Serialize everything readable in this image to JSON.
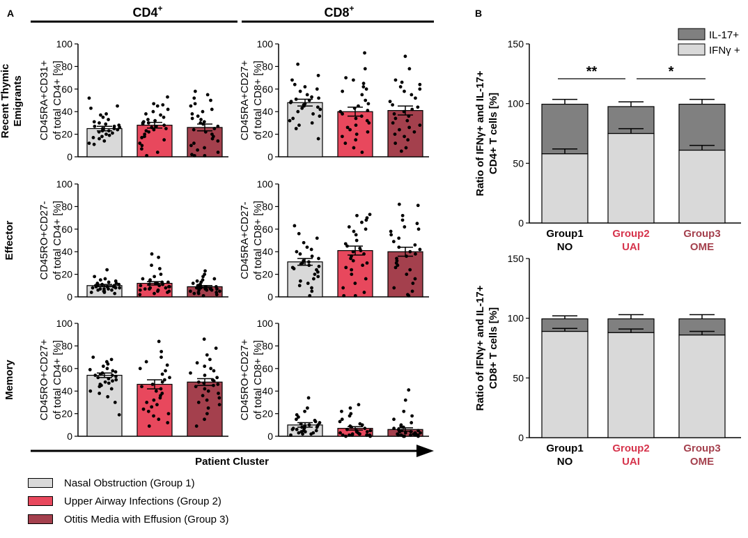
{
  "panel_labels": {
    "a": "A",
    "b": "B"
  },
  "headers": {
    "cd4": "CD4",
    "cd8": "CD8",
    "sup": "+"
  },
  "row_labels": [
    {
      "lines": [
        "Recent Thymic",
        "Emigrants"
      ]
    },
    {
      "lines": [
        "Effector"
      ]
    },
    {
      "lines": [
        "Memory"
      ]
    }
  ],
  "x_axis_label": "Patient Cluster",
  "legend": [
    {
      "label": "Nasal Obstruction (Group 1)",
      "color": "#d9d9d9"
    },
    {
      "label": "Upper Airway Infections (Group 2)",
      "color": "#e8485d"
    },
    {
      "label": "Otitis Media with Effusion (Group 3)",
      "color": "#a4404d"
    }
  ],
  "colors": {
    "g1": "#d9d9d9",
    "g2": "#e8485d",
    "g3": "#a4404d",
    "ifng": "#d9d9d9",
    "il17": "#808080",
    "g2_text": "#d6344c",
    "g3_text": "#a4404d"
  },
  "chart_data": [
    {
      "type": "bar",
      "id": "a-rte-cd4",
      "ylabel": [
        "CD45RA+CD31+",
        "of total CD4+ [%]"
      ],
      "ylim": [
        0,
        100
      ],
      "yticks": [
        0,
        20,
        40,
        60,
        80,
        100
      ],
      "categories": [
        "Group 1",
        "Group 2",
        "Group 3"
      ],
      "values": [
        25,
        28,
        26
      ],
      "errors": [
        2,
        2.5,
        3
      ],
      "points": [
        [
          52,
          45,
          43,
          38,
          37,
          35,
          33,
          31,
          30,
          29,
          28,
          27,
          27,
          26,
          25,
          25,
          24,
          23,
          23,
          22,
          21,
          20,
          19,
          18,
          17,
          16,
          14,
          12,
          11
        ],
        [
          53,
          47,
          46,
          45,
          42,
          40,
          38,
          37,
          35,
          33,
          32,
          31,
          30,
          30,
          29,
          28,
          27,
          26,
          25,
          24,
          23,
          22,
          20,
          18,
          17,
          15,
          12,
          10,
          7,
          4,
          1
        ],
        [
          58,
          55,
          52,
          50,
          47,
          45,
          42,
          40,
          38,
          36,
          34,
          33,
          31,
          30,
          29,
          27,
          25,
          24,
          22,
          20,
          18,
          16,
          14,
          12,
          10,
          8,
          6,
          4,
          2,
          1,
          1
        ]
      ]
    },
    {
      "type": "bar",
      "id": "a-rte-cd8",
      "ylabel": [
        "CD45RA+CD27+",
        "of total CD8+ [%]"
      ],
      "ylim": [
        0,
        100
      ],
      "yticks": [
        0,
        20,
        40,
        60,
        80,
        100
      ],
      "categories": [
        "Group 1",
        "Group 2",
        "Group 3"
      ],
      "values": [
        48,
        40,
        41
      ],
      "errors": [
        3,
        4,
        4
      ],
      "points": [
        [
          82,
          72,
          68,
          64,
          62,
          60,
          58,
          55,
          53,
          52,
          51,
          50,
          49,
          48,
          47,
          46,
          45,
          44,
          43,
          42,
          40,
          38,
          36,
          34,
          32,
          30,
          28,
          25,
          16
        ],
        [
          92,
          78,
          70,
          68,
          65,
          62,
          60,
          58,
          55,
          50,
          47,
          45,
          43,
          41,
          40,
          38,
          36,
          34,
          32,
          30,
          28,
          26,
          24,
          22,
          20,
          18,
          15,
          12,
          8,
          4
        ],
        [
          89,
          78,
          68,
          66,
          64,
          62,
          60,
          58,
          55,
          52,
          49,
          46,
          44,
          42,
          40,
          38,
          36,
          34,
          32,
          30,
          28,
          26,
          24,
          22,
          20,
          18,
          15,
          12,
          8,
          5
        ]
      ]
    },
    {
      "type": "bar",
      "id": "a-eff-cd4",
      "ylabel": [
        "CD45RO+CD27-",
        "of total CD4+ [%]"
      ],
      "ylim": [
        0,
        100
      ],
      "yticks": [
        0,
        20,
        40,
        60,
        80,
        100
      ],
      "categories": [
        "Group 1",
        "Group 2",
        "Group 3"
      ],
      "values": [
        10,
        12,
        9
      ],
      "errors": [
        1,
        1.5,
        1
      ],
      "points": [
        [
          24,
          18,
          16,
          15,
          14,
          13,
          12,
          12,
          11,
          11,
          10,
          10,
          10,
          9,
          9,
          9,
          8,
          8,
          8,
          7,
          7,
          7,
          6,
          6,
          5,
          5,
          4,
          4,
          3
        ],
        [
          38,
          35,
          28,
          25,
          20,
          18,
          16,
          15,
          14,
          13,
          13,
          12,
          12,
          11,
          11,
          10,
          10,
          9,
          9,
          8,
          8,
          7,
          7,
          6,
          6,
          5,
          5,
          4,
          3,
          2
        ],
        [
          23,
          20,
          18,
          16,
          15,
          14,
          13,
          12,
          11,
          10,
          10,
          9,
          9,
          8,
          8,
          8,
          7,
          7,
          7,
          6,
          6,
          6,
          5,
          5,
          4,
          4,
          3,
          3,
          2,
          1
        ]
      ]
    },
    {
      "type": "bar",
      "id": "a-eff-cd8",
      "ylabel": [
        "CD45RA+CD27-",
        "of total CD8+ [%]"
      ],
      "ylim": [
        0,
        100
      ],
      "yticks": [
        0,
        20,
        40,
        60,
        80,
        100
      ],
      "categories": [
        "Group 1",
        "Group 2",
        "Group 3"
      ],
      "values": [
        31,
        41,
        40
      ],
      "errors": [
        3,
        4,
        4
      ],
      "points": [
        [
          63,
          56,
          52,
          48,
          44,
          42,
          40,
          38,
          36,
          34,
          32,
          31,
          30,
          29,
          28,
          27,
          26,
          25,
          24,
          22,
          20,
          18,
          16,
          14,
          12,
          10,
          8,
          5,
          1
        ],
        [
          73,
          72,
          70,
          68,
          66,
          62,
          60,
          58,
          55,
          50,
          47,
          45,
          43,
          41,
          40,
          38,
          36,
          34,
          32,
          30,
          28,
          26,
          24,
          20,
          16,
          12,
          8,
          4,
          1,
          1
        ],
        [
          82,
          81,
          72,
          68,
          65,
          62,
          60,
          58,
          55,
          52,
          49,
          46,
          44,
          42,
          40,
          38,
          36,
          34,
          32,
          30,
          28,
          26,
          24,
          20,
          16,
          12,
          8,
          5,
          2,
          1
        ]
      ]
    },
    {
      "type": "bar",
      "id": "a-mem-cd4",
      "ylabel": [
        "CD45RO+CD27+",
        "of total CD4+ [%]"
      ],
      "ylim": [
        0,
        100
      ],
      "yticks": [
        0,
        20,
        40,
        60,
        80,
        100
      ],
      "categories": [
        "Group 1",
        "Group 2",
        "Group 3"
      ],
      "values": [
        54,
        46,
        48
      ],
      "errors": [
        2,
        4,
        3
      ],
      "points": [
        [
          70,
          68,
          66,
          64,
          62,
          60,
          59,
          58,
          57,
          56,
          55,
          54,
          54,
          53,
          52,
          51,
          50,
          49,
          48,
          47,
          46,
          45,
          44,
          42,
          40,
          38,
          35,
          30,
          19
        ],
        [
          84,
          75,
          70,
          66,
          63,
          60,
          58,
          55,
          52,
          50,
          48,
          46,
          44,
          42,
          40,
          38,
          36,
          34,
          32,
          30,
          28,
          26,
          24,
          22,
          20,
          18,
          15,
          12,
          9
        ],
        [
          86,
          78,
          72,
          68,
          65,
          62,
          60,
          58,
          56,
          54,
          52,
          50,
          49,
          48,
          47,
          46,
          45,
          44,
          42,
          40,
          38,
          36,
          34,
          32,
          30,
          28,
          25,
          20,
          15,
          9
        ]
      ]
    },
    {
      "type": "bar",
      "id": "a-mem-cd8",
      "ylabel": [
        "CD45RO+CD27+",
        "of total CD8+ [%]"
      ],
      "ylim": [
        0,
        100
      ],
      "yticks": [
        0,
        20,
        40,
        60,
        80,
        100
      ],
      "categories": [
        "Group 1",
        "Group 2",
        "Group 3"
      ],
      "values": [
        10,
        7,
        6
      ],
      "errors": [
        2,
        1.5,
        1.5
      ],
      "points": [
        [
          34,
          25,
          22,
          19,
          17,
          15,
          14,
          13,
          12,
          11,
          10,
          10,
          9,
          9,
          8,
          8,
          7,
          7,
          6,
          6,
          5,
          5,
          4,
          4,
          3,
          3,
          2,
          2,
          1
        ],
        [
          28,
          25,
          22,
          20,
          18,
          15,
          13,
          11,
          10,
          9,
          8,
          7,
          6,
          5,
          5,
          4,
          4,
          3,
          3,
          2,
          2,
          2,
          1,
          1,
          1,
          1,
          1,
          1,
          0,
          0
        ],
        [
          41,
          32,
          22,
          18,
          15,
          12,
          10,
          9,
          8,
          7,
          6,
          5,
          5,
          4,
          4,
          3,
          3,
          3,
          2,
          2,
          2,
          1,
          1,
          1,
          1,
          1,
          1,
          0,
          0,
          0
        ]
      ]
    },
    {
      "type": "stacked-bar",
      "id": "b-cd4",
      "ylabel": [
        "Ratio of IFNγ+ and IL-17+",
        "CD4+ T cells [%]"
      ],
      "ylim": [
        0,
        150
      ],
      "yticks": [
        0,
        50,
        100,
        150
      ],
      "categories": [
        {
          "line1": "Group1",
          "line2": "NO"
        },
        {
          "line1": "Group2",
          "line2": "UAI"
        },
        {
          "line1": "Group3",
          "line2": "OME"
        }
      ],
      "series": [
        {
          "name": "IFNγ +",
          "values": [
            58,
            75,
            61
          ],
          "errors": [
            4,
            4,
            4
          ]
        },
        {
          "name": "IL-17+",
          "values": [
            41.5,
            22.5,
            38.5
          ],
          "errors": [
            4,
            4,
            4
          ]
        }
      ],
      "legend": [
        "IL-17+",
        "IFNγ +"
      ],
      "significance": [
        {
          "from": 0,
          "to": 1,
          "label": "**"
        },
        {
          "from": 1,
          "to": 2,
          "label": "*"
        }
      ]
    },
    {
      "type": "stacked-bar",
      "id": "b-cd8",
      "ylabel": [
        "Ratio of IFNγ+ and IL-17+",
        "CD8+ T cells [%]"
      ],
      "ylim": [
        0,
        150
      ],
      "yticks": [
        0,
        50,
        100,
        150
      ],
      "categories": [
        {
          "line1": "Group1",
          "line2": "NO"
        },
        {
          "line1": "Group2",
          "line2": "UAI"
        },
        {
          "line1": "Group3",
          "line2": "OME"
        }
      ],
      "series": [
        {
          "name": "IFNγ +",
          "values": [
            89,
            88,
            86
          ],
          "errors": [
            2.5,
            3,
            3
          ]
        },
        {
          "name": "IL-17+",
          "values": [
            10.5,
            11.5,
            13.5
          ],
          "errors": [
            2.5,
            3.5,
            3.5
          ]
        }
      ],
      "significance": []
    }
  ]
}
